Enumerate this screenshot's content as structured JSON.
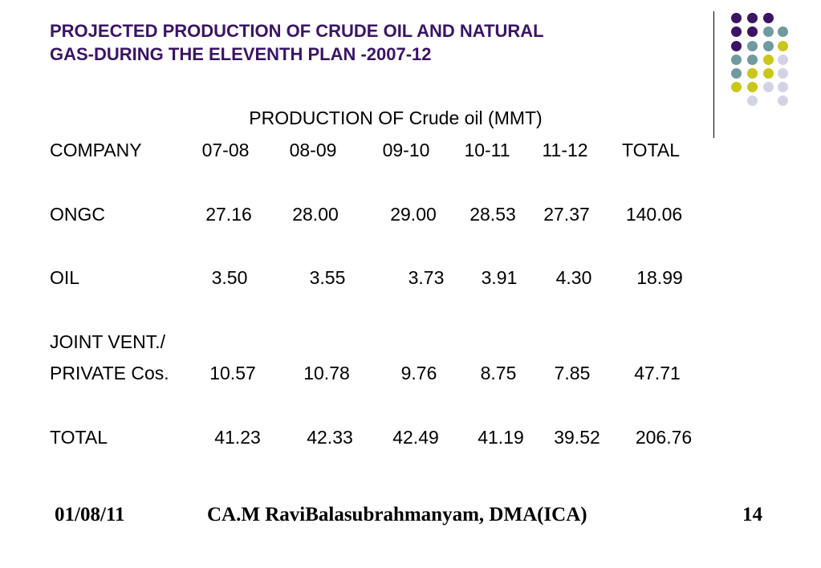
{
  "slide": {
    "title_line1": "PROJECTED PRODUCTION OF CRUDE OIL AND NATURAL",
    "title_line2": "GAS-DURING THE ELEVENTH PLAN -2007-12",
    "subtitle": "PRODUCTION OF Crude oil (MMT)",
    "title_color": "#3b1466"
  },
  "decoration": {
    "palette": {
      "purple": "#3b1466",
      "teal": "#6f9a9e",
      "olive": "#c9c71c",
      "lavender": "#d3d3e8"
    }
  },
  "table": {
    "headers": [
      "COMPANY",
      "07-08",
      "08-09",
      "09-10",
      "10-11",
      "11-12",
      "TOTAL"
    ],
    "rows": [
      {
        "label": "ONGC",
        "values": [
          "27.16",
          "28.00",
          "29.00",
          "28.53",
          "27.37",
          "140.06"
        ]
      },
      {
        "label": "OIL",
        "values": [
          "3.50",
          "3.55",
          "3.73",
          "3.91",
          "4.30",
          "18.99"
        ]
      },
      {
        "label": "JOINT VENT./",
        "values": []
      },
      {
        "label": "PRIVATE Cos.",
        "values": [
          "10.57",
          "10.78",
          "9.76",
          "8.75",
          "7.85",
          "47.71"
        ]
      },
      {
        "label": "TOTAL",
        "values": [
          "41.23",
          "42.33",
          "42.49",
          "41.19",
          "39.52",
          "206.76"
        ]
      }
    ]
  },
  "footer": {
    "date": "01/08/11",
    "author": "CA.M RaviBalasubrahmanyam, DMA(ICA)",
    "page": "14"
  }
}
